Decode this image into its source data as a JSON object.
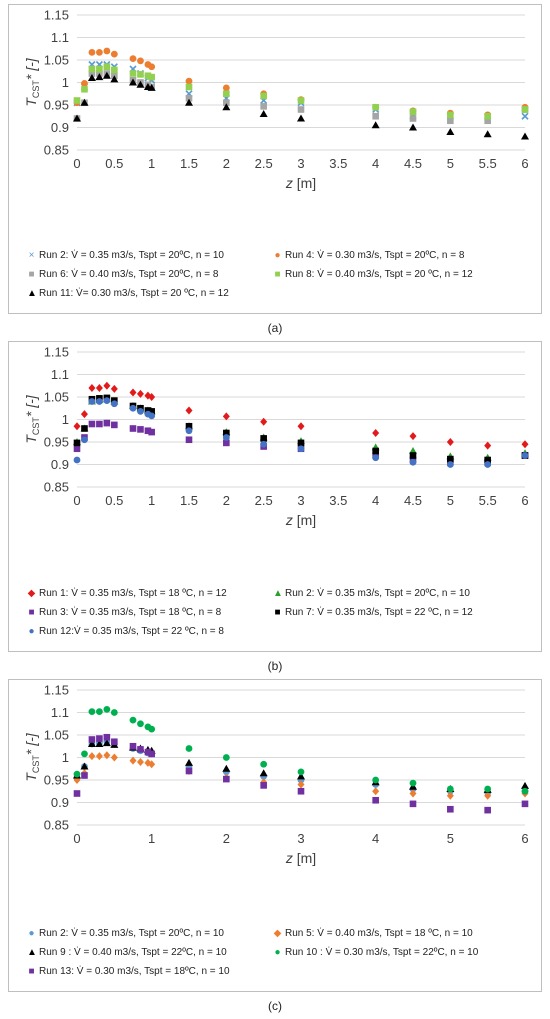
{
  "captions": [
    "(a)",
    "(b)",
    "(c)"
  ],
  "chart_data": [
    {
      "type": "scatter",
      "panel": "(a)",
      "title": "",
      "xlabel_main": "z",
      "xlabel_unit": " [m]",
      "ylabel_main": "T",
      "ylabel_sub": "CST",
      "ylabel_tail": "* [-]",
      "xlim": [
        0,
        6
      ],
      "ylim": [
        0.85,
        1.15
      ],
      "xticks": [
        "0",
        "0.5",
        "1",
        "1.5",
        "2",
        "2.5",
        "3",
        "3.5",
        "4",
        "4.5",
        "5",
        "5.5",
        "6"
      ],
      "yticks": [
        "0.85",
        "0.9",
        "0.95",
        "1",
        "1.05",
        "1.1",
        "1.15"
      ],
      "grid": "horizontal",
      "legend_position": "bottom",
      "series": [
        {
          "name": "Run 2: V̇ = 0.35 m3/s, Tspt = 20ºC, n = 10",
          "marker": "x",
          "color": "#5b9bd5",
          "x": [
            0,
            0.1,
            0.2,
            0.3,
            0.4,
            0.5,
            0.75,
            0.85,
            0.95,
            1.0,
            1.5,
            2,
            2.5,
            3,
            4,
            4.5,
            5,
            5.5,
            6
          ],
          "y": [
            0.955,
            0.99,
            1.04,
            1.04,
            1.04,
            1.035,
            1.03,
            1.02,
            1.01,
            1.005,
            0.975,
            0.965,
            0.96,
            0.955,
            0.94,
            0.925,
            0.925,
            0.925,
            0.925
          ]
        },
        {
          "name": "Run 4:  V̇ = 0.30 m3/s, Tspt = 20ºC, n = 8",
          "marker": "circle",
          "color": "#ed7d31",
          "x": [
            0,
            0.1,
            0.2,
            0.3,
            0.4,
            0.5,
            0.75,
            0.85,
            0.95,
            1.0,
            1.5,
            2,
            2.5,
            3,
            4,
            4.5,
            5,
            5.5,
            6
          ],
          "y": [
            0.955,
            0.998,
            1.067,
            1.067,
            1.07,
            1.063,
            1.053,
            1.048,
            1.04,
            1.035,
            1.003,
            0.988,
            0.975,
            0.962,
            0.945,
            0.937,
            0.932,
            0.928,
            0.945
          ]
        },
        {
          "name": "Run 6: V̇ = 0.40 m3/s, Tspt = 20ºC, n = 8",
          "marker": "square",
          "color": "#a5a5a5",
          "x": [
            0,
            0.1,
            0.2,
            0.3,
            0.4,
            0.5,
            0.75,
            0.85,
            0.95,
            1.0,
            1.5,
            2,
            2.5,
            3,
            4,
            4.5,
            5,
            5.5,
            6
          ],
          "y": [
            0.92,
            0.955,
            1.02,
            1.02,
            1.02,
            1.015,
            1.005,
            1.0,
            0.995,
            0.99,
            0.965,
            0.955,
            0.947,
            0.94,
            0.925,
            0.92,
            0.915,
            0.915,
            0.94
          ]
        },
        {
          "name": "Run 8: V̇ = 0.40 m3/s, Tspt = 20 ºC, n = 12",
          "marker": "square",
          "color": "#92d050",
          "x": [
            0,
            0.1,
            0.2,
            0.3,
            0.4,
            0.5,
            0.75,
            0.85,
            0.95,
            1.0,
            1.5,
            2,
            2.5,
            3,
            4,
            4.5,
            5,
            5.5,
            6
          ],
          "y": [
            0.96,
            0.985,
            1.03,
            1.03,
            1.035,
            1.028,
            1.02,
            1.018,
            1.015,
            1.012,
            0.99,
            0.975,
            0.97,
            0.96,
            0.945,
            0.935,
            0.928,
            0.925,
            0.94
          ]
        },
        {
          "name": "Run 11:  V̇= 0.30 m3/s, Tspt = 20 ºC, n = 12",
          "marker": "triangle",
          "color": "#000000",
          "x": [
            0,
            0.1,
            0.2,
            0.3,
            0.4,
            0.5,
            0.75,
            0.85,
            0.95,
            1.0,
            1.5,
            2,
            2.5,
            3,
            4,
            4.5,
            5,
            5.5,
            6
          ],
          "y": [
            0.92,
            0.955,
            1.01,
            1.012,
            1.015,
            1.007,
            1.0,
            0.995,
            0.99,
            0.988,
            0.955,
            0.945,
            0.93,
            0.92,
            0.905,
            0.9,
            0.89,
            0.885,
            0.88
          ]
        }
      ],
      "legend_layout": [
        [
          0,
          1
        ],
        [
          2,
          3
        ],
        [
          4
        ]
      ]
    },
    {
      "type": "scatter",
      "panel": "(b)",
      "title": "",
      "xlabel_main": "z",
      "xlabel_unit": " [m]",
      "ylabel_main": "T",
      "ylabel_sub": "CST",
      "ylabel_tail": "* [-]",
      "xlim": [
        0,
        6
      ],
      "ylim": [
        0.85,
        1.15
      ],
      "xticks": [
        "0",
        "0.5",
        "1",
        "1.5",
        "2",
        "2.5",
        "3",
        "3.5",
        "4",
        "4.5",
        "5",
        "5.5",
        "6"
      ],
      "yticks": [
        "0.85",
        "0.9",
        "0.95",
        "1",
        "1.05",
        "1.1",
        "1.15"
      ],
      "grid": "horizontal",
      "legend_position": "bottom",
      "series": [
        {
          "name": "Run 1: V̇  = 0.35 m3/s, Tspt = 18 ºC, n = 12",
          "marker": "diamond",
          "color": "#e31a1c",
          "x": [
            0,
            0.1,
            0.2,
            0.3,
            0.4,
            0.5,
            0.75,
            0.85,
            0.95,
            1.0,
            1.5,
            2,
            2.5,
            3,
            4,
            4.5,
            5,
            5.5,
            6
          ],
          "y": [
            0.985,
            1.012,
            1.07,
            1.07,
            1.075,
            1.068,
            1.06,
            1.057,
            1.053,
            1.05,
            1.02,
            1.007,
            0.995,
            0.985,
            0.97,
            0.963,
            0.95,
            0.942,
            0.945
          ]
        },
        {
          "name": "Run 2: V̇ = 0.35 m3/s, Tspt = 20ºC, n = 10",
          "marker": "triangle",
          "color": "#2ca02c",
          "x": [
            0,
            0.1,
            0.2,
            0.3,
            0.4,
            0.5,
            0.75,
            0.85,
            0.95,
            1.0,
            1.5,
            2,
            2.5,
            3,
            4,
            4.5,
            5,
            5.5,
            6
          ],
          "y": [
            0.95,
            0.98,
            1.04,
            1.043,
            1.045,
            1.04,
            1.03,
            1.025,
            1.02,
            1.018,
            0.985,
            0.972,
            0.96,
            0.952,
            0.938,
            0.93,
            0.918,
            0.915,
            0.925
          ]
        },
        {
          "name": "Run 3: V̇  = 0.35 m3/s, Tspt = 18 ºC, n = 8",
          "marker": "square",
          "color": "#7030a0",
          "x": [
            0,
            0.1,
            0.2,
            0.3,
            0.4,
            0.5,
            0.75,
            0.85,
            0.95,
            1.0,
            1.5,
            2,
            2.5,
            3,
            4,
            4.5,
            5,
            5.5,
            6
          ],
          "y": [
            0.935,
            0.96,
            0.99,
            0.99,
            0.992,
            0.988,
            0.98,
            0.978,
            0.975,
            0.972,
            0.955,
            0.948,
            0.94,
            0.935,
            0.92,
            0.91,
            0.905,
            0.905,
            0.92
          ]
        },
        {
          "name": "Run 7: V̇  = 0.35 m3/s, Tspt = 22 ºC, n = 12",
          "marker": "square",
          "color": "#000000",
          "x": [
            0,
            0.1,
            0.2,
            0.3,
            0.4,
            0.5,
            0.75,
            0.85,
            0.95,
            1.0,
            1.5,
            2,
            2.5,
            3,
            4,
            4.5,
            5,
            5.5,
            6
          ],
          "y": [
            0.948,
            0.98,
            1.045,
            1.047,
            1.048,
            1.042,
            1.03,
            1.025,
            1.02,
            1.018,
            0.985,
            0.97,
            0.958,
            0.948,
            0.93,
            0.92,
            0.912,
            0.91,
            0.92
          ]
        },
        {
          "name": "Run 12:V̇  = 0.35 m3/s, Tspt = 22 ºC, n = 8",
          "marker": "circle",
          "color": "#4472c4",
          "x": [
            0,
            0.1,
            0.2,
            0.3,
            0.4,
            0.5,
            0.75,
            0.85,
            0.95,
            1.0,
            1.5,
            2,
            2.5,
            3,
            4,
            4.5,
            5,
            5.5,
            6
          ],
          "y": [
            0.91,
            0.955,
            1.04,
            1.04,
            1.042,
            1.035,
            1.025,
            1.018,
            1.012,
            1.008,
            0.975,
            0.96,
            0.945,
            0.935,
            0.915,
            0.905,
            0.9,
            0.9,
            0.92
          ]
        }
      ],
      "legend_layout": [
        [
          0,
          1
        ],
        [
          2,
          3
        ],
        [
          4
        ]
      ]
    },
    {
      "type": "scatter",
      "panel": "(c)",
      "title": "",
      "xlabel_main": "z",
      "xlabel_unit": " [m]",
      "ylabel_main": "T",
      "ylabel_sub": "CST",
      "ylabel_tail": "* [-]",
      "xlim": [
        0,
        6
      ],
      "ylim": [
        0.85,
        1.15
      ],
      "xticks": [
        "0",
        "1",
        "2",
        "3",
        "4",
        "5",
        "6"
      ],
      "yticks": [
        "0.85",
        "0.9",
        "0.95",
        "1",
        "1.05",
        "1.1",
        "1.15"
      ],
      "grid": "horizontal",
      "legend_position": "bottom",
      "series": [
        {
          "name": "Run 2: V̇  = 0.35 m3/s, Tspt = 20ºC, n = 10",
          "marker": "circle",
          "color": "#5b9bd5",
          "x": [
            0,
            0.1,
            0.2,
            0.3,
            0.4,
            0.5,
            0.75,
            0.85,
            0.95,
            1.0,
            1.5,
            2,
            2.5,
            3,
            4,
            4.5,
            5,
            5.5,
            6
          ],
          "y": [
            0.955,
            0.98,
            1.03,
            1.032,
            1.035,
            1.03,
            1.02,
            1.015,
            1.01,
            1.008,
            0.98,
            0.968,
            0.958,
            0.95,
            0.94,
            0.93,
            0.925,
            0.922,
            0.925
          ]
        },
        {
          "name": "Run 5: V̇ = 0.40 m3/s, Tspt = 18 ºC, n = 10",
          "marker": "diamond",
          "color": "#ed7d31",
          "x": [
            0,
            0.1,
            0.2,
            0.3,
            0.4,
            0.5,
            0.75,
            0.85,
            0.95,
            1.0,
            1.5,
            2,
            2.5,
            3,
            4,
            4.5,
            5,
            5.5,
            6
          ],
          "y": [
            0.95,
            0.965,
            1.003,
            1.003,
            1.005,
            1.0,
            0.993,
            0.99,
            0.988,
            0.985,
            0.97,
            0.955,
            0.945,
            0.94,
            0.925,
            0.92,
            0.915,
            0.915,
            0.92
          ]
        },
        {
          "name": "Run 9 : V̇ = 0.40 m3/s, Tspt = 22ºC, n = 10",
          "marker": "triangle",
          "color": "#000000",
          "x": [
            0,
            0.1,
            0.2,
            0.3,
            0.4,
            0.5,
            0.75,
            0.85,
            0.95,
            1.0,
            1.5,
            2,
            2.5,
            3,
            4,
            4.5,
            5,
            5.5,
            6
          ],
          "y": [
            0.96,
            0.98,
            1.03,
            1.03,
            1.032,
            1.028,
            1.022,
            1.02,
            1.017,
            1.015,
            0.988,
            0.975,
            0.965,
            0.958,
            0.945,
            0.935,
            0.93,
            0.928,
            0.937
          ]
        },
        {
          "name": "Run 10 : V̇ = 0.30 m3/s, Tspt = 22ºC, n = 10",
          "marker": "circle",
          "color": "#00b050",
          "x": [
            0,
            0.1,
            0.2,
            0.3,
            0.4,
            0.5,
            0.75,
            0.85,
            0.95,
            1.0,
            1.5,
            2,
            2.5,
            3,
            4,
            4.5,
            5,
            5.5,
            6
          ],
          "y": [
            0.963,
            1.008,
            1.102,
            1.102,
            1.107,
            1.1,
            1.083,
            1.075,
            1.068,
            1.063,
            1.02,
            1.0,
            0.985,
            0.968,
            0.95,
            0.943,
            0.93,
            0.93,
            0.925
          ]
        },
        {
          "name": "Run 13: V̇ = 0.30 m3/s, Tspt = 18ºC, n = 10",
          "marker": "square",
          "color": "#7030a0",
          "x": [
            0,
            0.1,
            0.2,
            0.3,
            0.4,
            0.5,
            0.75,
            0.85,
            0.95,
            1.0,
            1.5,
            2,
            2.5,
            3,
            4,
            4.5,
            5,
            5.5,
            6
          ],
          "y": [
            0.92,
            0.96,
            1.04,
            1.042,
            1.045,
            1.035,
            1.025,
            1.018,
            1.012,
            1.008,
            0.97,
            0.952,
            0.938,
            0.925,
            0.905,
            0.897,
            0.885,
            0.883,
            0.897
          ]
        }
      ],
      "legend_layout": [
        [
          0,
          1
        ],
        [
          2,
          3
        ],
        [
          4
        ]
      ]
    }
  ]
}
